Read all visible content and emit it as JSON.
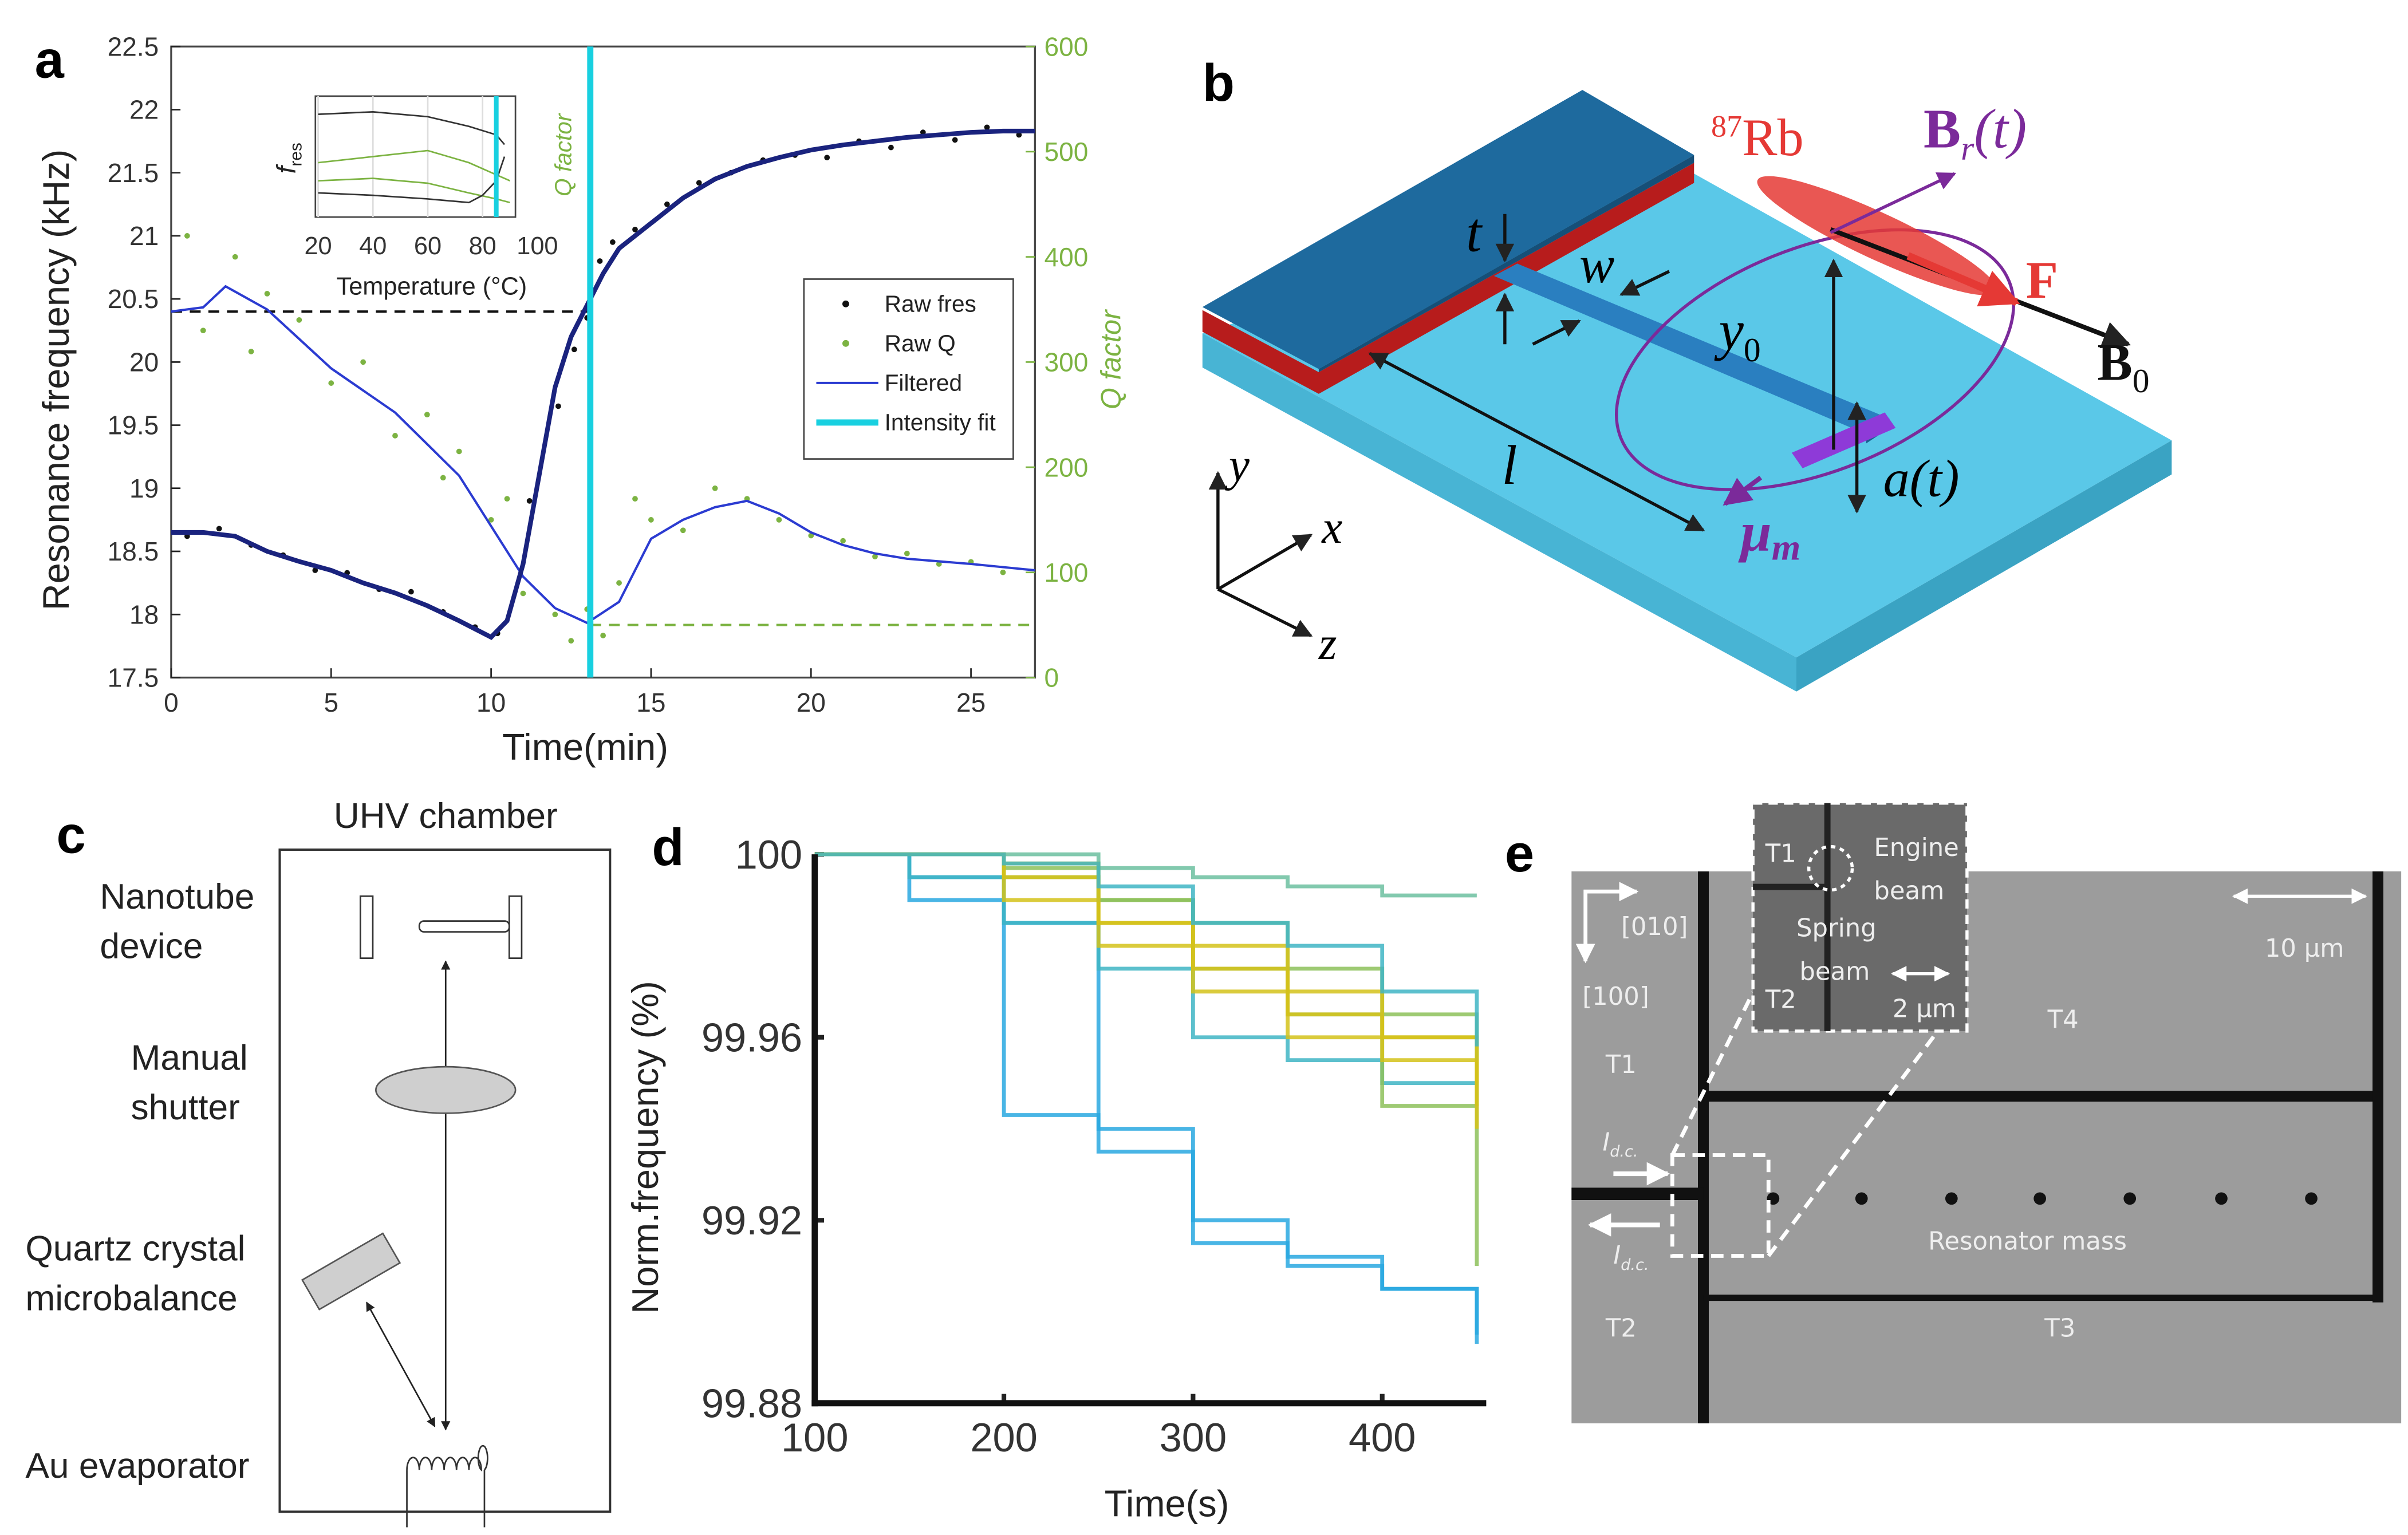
{
  "chart_data": [
    {
      "type": "line",
      "panel": "a",
      "xlabel": "Time(min)",
      "ylabel": "Resonance frequency (kHz)",
      "y2label": "Q factor",
      "xlim": [
        0,
        27
      ],
      "xticks": [
        0,
        5,
        10,
        15,
        20,
        25
      ],
      "ylim": [
        17.5,
        22.5
      ],
      "yticks": [
        17.5,
        18,
        18.5,
        19,
        19.5,
        20,
        20.5,
        21,
        21.5,
        22,
        22.5
      ],
      "y2lim": [
        0,
        600
      ],
      "y2ticks": [
        0,
        100,
        200,
        300,
        400,
        500,
        600
      ],
      "series": [
        {
          "name": "Raw fres",
          "color": "#111111",
          "style": "scatter",
          "x": [
            0.5,
            1.5,
            2.5,
            3.5,
            4.5,
            5.5,
            6.5,
            7.5,
            8.5,
            9.5,
            10.2,
            11.2,
            12.1,
            12.6,
            13,
            13.4,
            13.8,
            14.5,
            15.5,
            16.5,
            17.5,
            18.5,
            19.5,
            20.5,
            21.5,
            22.5,
            23.5,
            24.5,
            25.5,
            26.5
          ],
          "values": [
            18.62,
            18.68,
            18.55,
            18.47,
            18.35,
            18.33,
            18.2,
            18.18,
            18.02,
            17.9,
            17.85,
            18.9,
            19.65,
            20.1,
            20.35,
            20.8,
            20.95,
            21.05,
            21.25,
            21.42,
            21.5,
            21.6,
            21.64,
            21.62,
            21.75,
            21.7,
            21.82,
            21.76,
            21.86,
            21.8
          ]
        },
        {
          "name": "Raw Q",
          "color": "#7cb342",
          "style": "scatter",
          "axis": "y2",
          "x": [
            0.5,
            1,
            2,
            2.5,
            3,
            4,
            5,
            6,
            7,
            8,
            8.5,
            9,
            10,
            10.5,
            11,
            12,
            12.5,
            13,
            13.5,
            14,
            14.5,
            15,
            16,
            17,
            18,
            19,
            20,
            21,
            22,
            23,
            24,
            25,
            26
          ],
          "values": [
            420,
            330,
            400,
            310,
            365,
            340,
            280,
            300,
            230,
            250,
            190,
            215,
            150,
            170,
            80,
            60,
            35,
            65,
            40,
            90,
            170,
            150,
            140,
            180,
            170,
            150,
            135,
            130,
            115,
            118,
            108,
            110,
            100
          ]
        },
        {
          "name": "Filtered",
          "color": "#2b3bd1",
          "style": "line",
          "width": 1.5,
          "axis": "y2",
          "x": [
            0,
            1,
            1.7,
            3,
            5,
            7,
            9,
            10,
            11,
            12,
            13,
            14,
            15,
            16,
            17,
            18,
            19,
            20,
            21,
            22,
            23,
            25,
            27
          ],
          "values": [
            348,
            352,
            372,
            350,
            294,
            252,
            192,
            144,
            96,
            66,
            52,
            72,
            132,
            150,
            162,
            168,
            156,
            138,
            126,
            118,
            113,
            108,
            102
          ]
        },
        {
          "color": "#1a237e",
          "style": "line",
          "width": 3,
          "x": [
            0,
            1,
            2,
            3,
            4,
            5,
            6,
            7,
            8,
            9,
            10,
            10.5,
            11,
            11.5,
            12,
            12.5,
            13,
            13.5,
            14,
            15,
            16,
            17,
            18,
            19,
            20,
            21,
            22,
            23,
            24,
            25,
            26,
            27
          ],
          "values": [
            18.65,
            18.65,
            18.62,
            18.5,
            18.42,
            18.35,
            18.25,
            18.17,
            18.07,
            17.95,
            17.82,
            17.95,
            18.4,
            19.1,
            19.8,
            20.2,
            20.45,
            20.7,
            20.9,
            21.1,
            21.3,
            21.45,
            21.55,
            21.62,
            21.68,
            21.72,
            21.75,
            21.78,
            21.8,
            21.82,
            21.83,
            21.83
          ]
        },
        {
          "name": "Intensity fit",
          "color": "#18d0e0",
          "style": "line",
          "width": 4,
          "x": [
            13.1,
            13.1
          ],
          "values": [
            17.5,
            22.5
          ]
        }
      ],
      "reference_lines": [
        {
          "y": 20.4,
          "x": [
            0,
            13.1
          ],
          "color": "#111111"
        },
        {
          "y2": 50,
          "x": [
            13.1,
            27
          ],
          "color": "#7cb342"
        }
      ],
      "inset": {
        "xlabel": "Temperature (°C)",
        "ylabel": "f",
        "ylabel_sub": "res",
        "y2label": "Q factor",
        "xlim": [
          19,
          92
        ],
        "xticks": [
          20,
          40,
          60,
          80,
          100
        ],
        "ylim": [
          0,
          1
        ],
        "marker_x": 85,
        "series": [
          {
            "color": "#333333",
            "x": [
              20,
              40,
              60,
              75,
              85,
              88
            ],
            "values": [
              0.85,
              0.87,
              0.83,
              0.75,
              0.68,
              0.6
            ]
          },
          {
            "color": "#7cb342",
            "x": [
              20,
              40,
              60,
              75,
              85,
              90
            ],
            "values": [
              0.45,
              0.5,
              0.55,
              0.45,
              0.35,
              0.3
            ]
          },
          {
            "color": "#7cb342",
            "x": [
              20,
              40,
              60,
              75,
              85,
              90
            ],
            "values": [
              0.3,
              0.32,
              0.28,
              0.2,
              0.15,
              0.12
            ]
          },
          {
            "color": "#333333",
            "x": [
              20,
              40,
              60,
              75,
              80,
              85,
              88
            ],
            "values": [
              0.2,
              0.18,
              0.15,
              0.12,
              0.18,
              0.3,
              0.5
            ]
          }
        ]
      }
    },
    {
      "type": "line",
      "panel": "d",
      "drawstyle": "steps-post",
      "xlabel": "Time(s)",
      "ylabel": "Norm.frequency (%)",
      "xlim": [
        100,
        455
      ],
      "xticks": [
        100,
        200,
        300,
        400
      ],
      "ylim": [
        99.88,
        100
      ],
      "yticks": [
        100,
        99.96,
        99.92,
        99.88
      ],
      "x": [
        100,
        150,
        200,
        250,
        300,
        350,
        400,
        450
      ],
      "series": [
        {
          "color": "#29a8e0",
          "values": [
            100,
            99.995,
            99.943,
            99.935,
            99.915,
            99.912,
            99.905,
            99.895
          ]
        },
        {
          "color": "#29a8e0",
          "values": [
            100,
            99.99,
            99.985,
            99.94,
            99.92,
            99.91,
            99.905,
            99.893
          ]
        },
        {
          "color": "#3fb5c4",
          "values": [
            100,
            99.995,
            99.985,
            99.975,
            99.96,
            99.955,
            99.95,
            99.945
          ]
        },
        {
          "color": "#6cc0a0",
          "values": [
            100,
            100,
            100,
            99.997,
            99.995,
            99.993,
            99.991,
            99.991
          ]
        },
        {
          "color": "#8dc15a",
          "values": [
            100,
            100,
            99.995,
            99.99,
            99.975,
            99.965,
            99.945,
            99.91
          ]
        },
        {
          "color": "#d4c21a",
          "values": [
            100,
            100,
            99.99,
            99.98,
            99.97,
            99.96,
            99.955,
            99.945
          ]
        },
        {
          "color": "#d4c21a",
          "values": [
            100,
            100,
            99.998,
            99.985,
            99.975,
            99.965,
            99.96,
            99.94
          ]
        },
        {
          "color": "#8dc15a",
          "values": [
            100,
            100,
            99.997,
            99.99,
            99.985,
            99.975,
            99.965,
            99.955
          ]
        },
        {
          "color": "#d4c21a",
          "values": [
            100,
            100,
            99.995,
            99.985,
            99.98,
            99.97,
            99.96,
            99.95
          ]
        },
        {
          "color": "#3fb5c4",
          "values": [
            100,
            100,
            99.998,
            99.993,
            99.985,
            99.98,
            99.97,
            99.958
          ]
        }
      ]
    }
  ],
  "diagram_b": {
    "label": "b",
    "rb_mass": "87",
    "rb": "Rb",
    "br": "B",
    "br_sub": "r",
    "br_arg": "(t)",
    "force": "F",
    "b0": "B",
    "b0_sub": "0",
    "t": "t",
    "w": "w",
    "y0": "y",
    "y0_sub": "0",
    "l": "l",
    "a": "a(t)",
    "mu": "μ",
    "mu_sub": "m",
    "axes": [
      "y",
      "x",
      "z"
    ]
  },
  "diagram_c": {
    "label": "c",
    "title": "UHV chamber",
    "components": [
      [
        "Nanotube",
        "device"
      ],
      [
        "Manual",
        "shutter"
      ],
      [
        "Quartz crystal",
        "microbalance"
      ],
      [
        "Au evaporator"
      ]
    ]
  },
  "image_e": {
    "label": "e",
    "inset": {
      "t1": "T1",
      "engine": [
        "Engine",
        "beam"
      ],
      "spring": [
        "Spring",
        "beam"
      ],
      "t2": "T2",
      "scale": "2 μm"
    },
    "directions": [
      "[010]",
      "[100]"
    ],
    "scale": "10 μm",
    "terminals": [
      "T1",
      "T2",
      "T3",
      "T4"
    ],
    "mass": "Resonator mass",
    "currents": [
      {
        "text": "I",
        "sub": "d.c."
      },
      {
        "text": "I",
        "sub": "d.c."
      }
    ]
  }
}
